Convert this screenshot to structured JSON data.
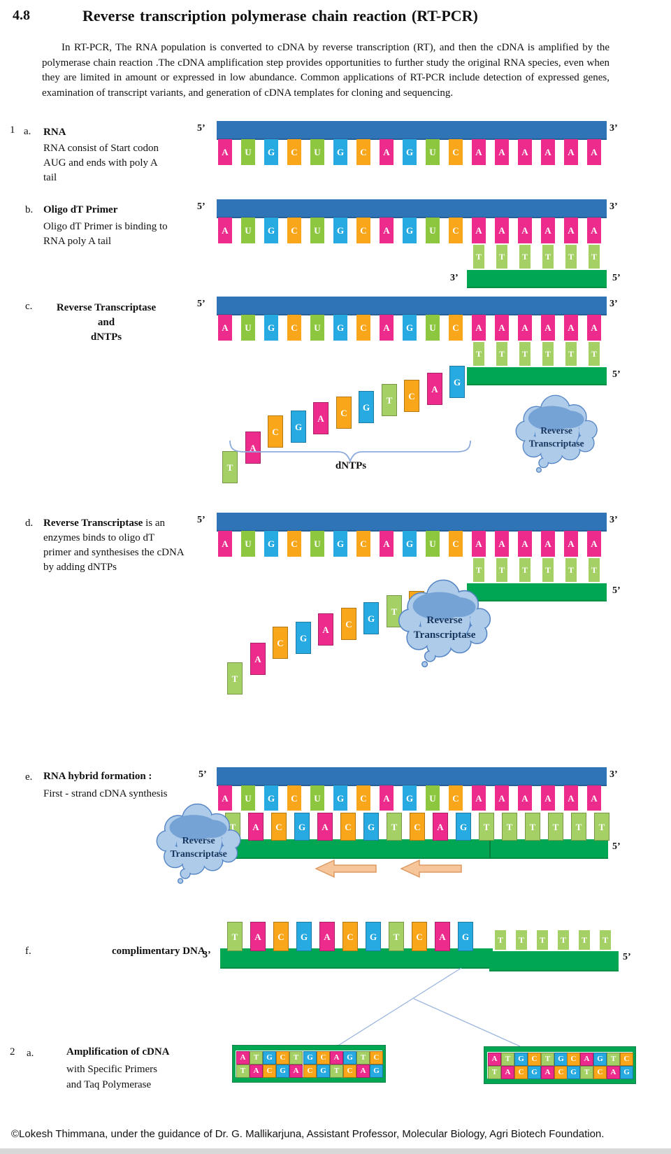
{
  "page": {
    "section_number": "4.8",
    "title": "Reverse transcription polymerase chain reaction (RT-PCR)",
    "intro": "In RT-PCR,  The RNA population is converted to cDNA by reverse transcription (RT), and then the cDNA is amplified by the polymerase chain reaction .The cDNA amplification step provides opportunities to further study the original RNA species, even when they are limited in amount or expressed in low abundance. Common applications of RT-PCR include detection of  expressed genes, examination of transcript variants, and generation of cDNA templates for cloning and sequencing.",
    "footer": "©Lokesh Thimmana, under the guidance of Dr. G. Mallikarjuna, Assistant Professor,  Molecular Biology,  Agri Biotech Foundation."
  },
  "colors": {
    "A": "#EC2B8D",
    "U": "#8DC63F",
    "G": "#27AAE1",
    "C": "#F9A61A",
    "T": "#A5D065",
    "rna_bar": "#2E74B6",
    "dna_bar": "#00A651",
    "dna_bar_edge": "#13814A",
    "cloud_fill": "#AECBEA",
    "cloud_shade": "#76A3D6",
    "cloud_stroke": "#5585C4",
    "cloud_text": "#17365D",
    "brace": "#8EAADB",
    "connector": "#9CB6DE",
    "arrow_fill": "#F6C59A",
    "arrow_stroke": "#DE9A63"
  },
  "labels": {
    "five_prime": "5’",
    "three_prime": "3’",
    "dntps": "dNTPs",
    "enzyme_line1": "Reverse",
    "enzyme_line2": "Transcriptase"
  },
  "sequences": {
    "rna": [
      "A",
      "U",
      "G",
      "C",
      "U",
      "G",
      "C",
      "A",
      "G",
      "U",
      "C",
      "A",
      "A",
      "A",
      "A",
      "A",
      "A"
    ],
    "primer": [
      "T",
      "T",
      "T",
      "T",
      "T",
      "T"
    ],
    "cdna": [
      "T",
      "A",
      "C",
      "G",
      "A",
      "C",
      "G",
      "T",
      "C",
      "A",
      "G",
      "T",
      "T",
      "T",
      "T",
      "T",
      "T"
    ],
    "dntps_c": [
      "T",
      "A",
      "C",
      "G",
      "A",
      "C",
      "G",
      "T",
      "C",
      "A",
      "G"
    ],
    "dntps_d": [
      "T",
      "A",
      "C",
      "G",
      "A",
      "C",
      "G",
      "T",
      "C"
    ],
    "amplicon_top": [
      "A",
      "T",
      "G",
      "C",
      "T",
      "G",
      "C",
      "A",
      "G",
      "T",
      "C"
    ],
    "amplicon_bottom": [
      "T",
      "A",
      "C",
      "G",
      "A",
      "C",
      "G",
      "T",
      "C",
      "A",
      "G"
    ]
  },
  "steps": {
    "a": {
      "index": "1",
      "letter": "a.",
      "title": "RNA",
      "description": "RNA consist of Start codon AUG and ends with poly A tail"
    },
    "b": {
      "letter": "b.",
      "title": "Oligo dT Primer",
      "description": "Oligo  dT Primer is binding to RNA poly A tail"
    },
    "c": {
      "letter": "c.",
      "title_line1": "Reverse Transcriptase",
      "title_line2": "and",
      "title_line3": "dNTPs"
    },
    "d": {
      "letter": "d.",
      "title_bold": "Reverse Transcriptase",
      "description_rest": " is an enzymes binds to oligo dT primer and synthesises the cDNA by adding dNTPs"
    },
    "e": {
      "letter": "e.",
      "title": "RNA hybrid formation :",
      "subtitle": "First - strand cDNA synthesis"
    },
    "f": {
      "letter": "f.",
      "title": "complimentary DNA"
    },
    "amp": {
      "index": "2",
      "letter": "a.",
      "title": "Amplification of cDNA",
      "line2": "with Specific Primers",
      "line3": "and Taq Polymerase"
    }
  }
}
